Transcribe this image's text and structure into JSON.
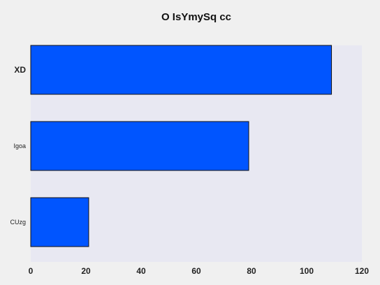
{
  "chart_data": {
    "type": "bar",
    "orientation": "horizontal",
    "title": "O IsYmySq cc",
    "categories": [
      "XD",
      "Igoa",
      "CUzg"
    ],
    "values": [
      109,
      79,
      21
    ],
    "xlabel": "",
    "ylabel": "",
    "xlim": [
      0,
      120
    ],
    "x_ticks": [
      0,
      20,
      40,
      60,
      80,
      100,
      120
    ],
    "grid": false,
    "legend": "none",
    "colors": {
      "bar": "#0055ff",
      "bar_edge": "#111111",
      "plot_background": "#e8e8f2",
      "figure_background": "#f0f0f0"
    }
  }
}
